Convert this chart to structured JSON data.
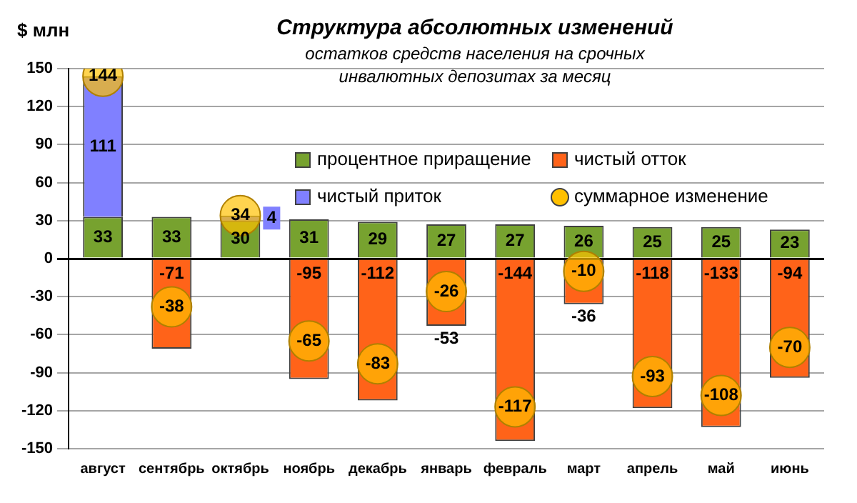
{
  "chart_data": {
    "type": "bar",
    "title": "Структура абсолютных изменений",
    "subtitle": "остатков средств населения на срочных инвалютных депозитах за месяц",
    "ylabel": "$ млн",
    "categories": [
      "август",
      "сентябрь",
      "октябрь",
      "ноябрь",
      "декабрь",
      "январь",
      "февраль",
      "март",
      "апрель",
      "май",
      "июнь"
    ],
    "stacked": true,
    "series": [
      {
        "name": "процентное приращение",
        "color": "#77a22f",
        "values": [
          33,
          33,
          30,
          31,
          29,
          27,
          27,
          26,
          25,
          25,
          23
        ]
      },
      {
        "name": "чистый отток",
        "color": "#ff6319",
        "values": [
          null,
          -71,
          null,
          -95,
          -112,
          -53,
          -144,
          -36,
          -118,
          -133,
          -94
        ]
      },
      {
        "name": "чистый приток",
        "color": "#8080ff",
        "values": [
          111,
          null,
          4,
          null,
          null,
          null,
          null,
          null,
          null,
          null,
          null
        ]
      },
      {
        "name": "суммарное изменение",
        "type": "scatter",
        "color": "#ffc000",
        "x": [
          "август",
          "сентябрь",
          "октябрь",
          "ноябрь",
          "декабрь",
          "январь",
          "февраль",
          "март",
          "апрель",
          "май",
          "июнь"
        ],
        "values": [
          144,
          -38,
          34,
          -65,
          -83,
          -26,
          -117,
          -10,
          -93,
          -108,
          -70
        ]
      }
    ],
    "ylim": [
      -150,
      150
    ],
    "yticks": [
      -150,
      -120,
      -90,
      -60,
      -30,
      0,
      30,
      60,
      90,
      120,
      150
    ],
    "grid": "y",
    "legend": "top right",
    "marker": "circle",
    "data_labels": true
  }
}
